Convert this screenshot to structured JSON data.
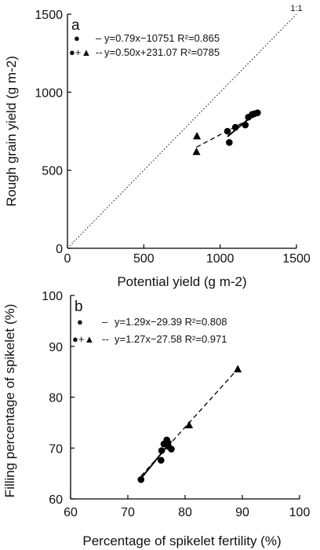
{
  "chart_data": [
    {
      "type": "scatter",
      "panel_label": "a",
      "xlabel": "Potential yield (g m-2)",
      "ylabel": "Rough grain yield (g m-2)",
      "xlim": [
        0,
        1500
      ],
      "ylim": [
        0,
        1500
      ],
      "xticks": [
        "0",
        "500",
        "1000",
        "1500"
      ],
      "yticks": [
        "0",
        "500",
        "1000",
        "1500"
      ],
      "reference_line_label": "1:1",
      "legend": [
        {
          "marker": "●",
          "line": "–",
          "equation": "y=0.79x−10751 R²=0.865"
        },
        {
          "marker": "●+▲",
          "line": "--",
          "equation": "y=0.50x+231.07 R²=0785"
        }
      ],
      "series": [
        {
          "marker": "circle",
          "points": [
            [
              1048,
              750
            ],
            [
              1060,
              678
            ],
            [
              1100,
              775
            ],
            [
              1165,
              790
            ],
            [
              1185,
              840
            ],
            [
              1210,
              858
            ],
            [
              1225,
              862
            ],
            [
              1245,
              868
            ]
          ]
        },
        {
          "marker": "triangle",
          "points": [
            [
              848,
              718
            ],
            [
              845,
              618
            ]
          ]
        }
      ],
      "fits": [
        {
          "style": "solid",
          "x": [
            1048,
            1245
          ],
          "slope": 0.79,
          "intercept": -10751
        },
        {
          "style": "dashed",
          "x": [
            845,
            1245
          ],
          "slope": 0.5,
          "intercept": 231.07
        }
      ]
    },
    {
      "type": "scatter",
      "panel_label": "b",
      "xlabel": "Percentage of spikelet fertility (%)",
      "ylabel": "Filling percentage of spikelet (%)",
      "xlim": [
        60,
        100
      ],
      "ylim": [
        60,
        100
      ],
      "xticks": [
        "60",
        "70",
        "80",
        "90",
        "100"
      ],
      "yticks": [
        "60",
        "70",
        "80",
        "90",
        "100"
      ],
      "legend": [
        {
          "marker": "●",
          "line": "–",
          "equation": "y=1.29x−29.39 R²=0.808"
        },
        {
          "marker": "●+▲",
          "line": "--",
          "equation": "y=1.27x−27.58 R²=0.971"
        }
      ],
      "series": [
        {
          "marker": "circle",
          "points": [
            [
              72.3,
              63.8
            ],
            [
              75.8,
              67.6
            ],
            [
              75.9,
              69.5
            ],
            [
              76.3,
              70.8
            ],
            [
              76.8,
              71.6
            ],
            [
              77.0,
              71.0
            ],
            [
              77.1,
              70.3
            ],
            [
              77.6,
              69.8
            ]
          ]
        },
        {
          "marker": "triangle",
          "points": [
            [
              80.7,
              74.5
            ],
            [
              89.2,
              85.5
            ]
          ]
        }
      ],
      "fits": [
        {
          "style": "solid",
          "x": [
            72.3,
            77.6
          ],
          "slope": 1.29,
          "intercept": -29.39
        },
        {
          "style": "dashed",
          "x": [
            72.3,
            89.2
          ],
          "slope": 1.27,
          "intercept": -27.58
        }
      ]
    }
  ]
}
